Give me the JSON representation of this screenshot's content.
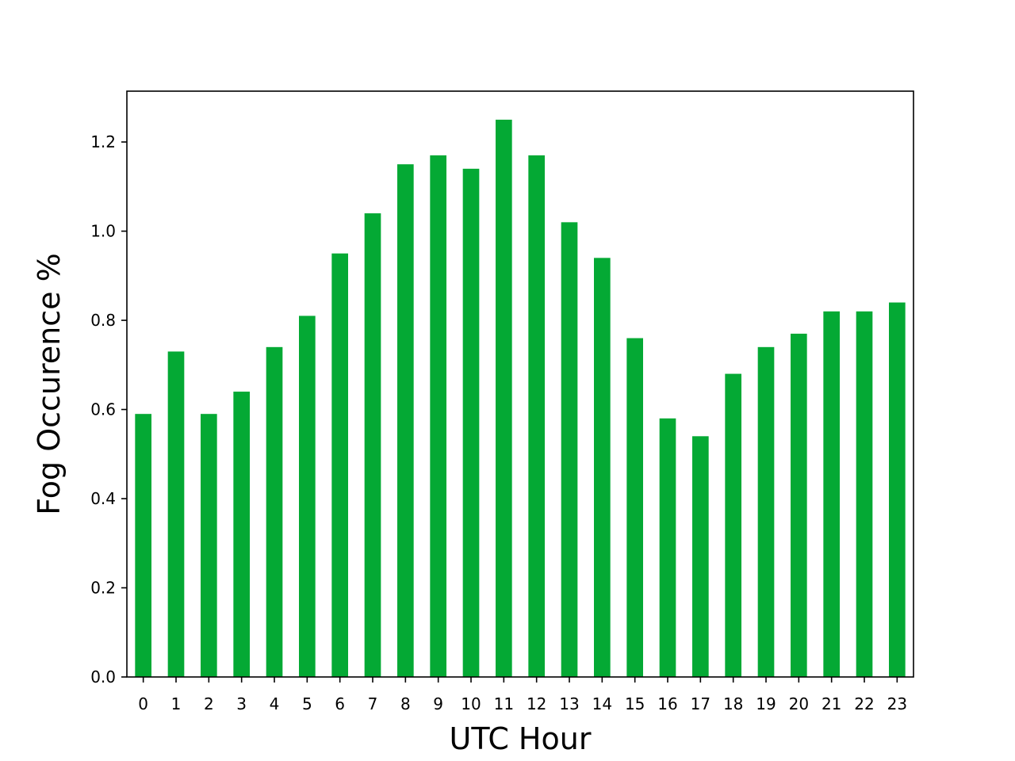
{
  "chart_data": {
    "type": "bar",
    "title": "",
    "xlabel": "UTC Hour",
    "ylabel": "Fog Occurence %",
    "categories": [
      "0",
      "1",
      "2",
      "3",
      "4",
      "5",
      "6",
      "7",
      "8",
      "9",
      "10",
      "11",
      "12",
      "13",
      "14",
      "15",
      "16",
      "17",
      "18",
      "19",
      "20",
      "21",
      "22",
      "23"
    ],
    "values": [
      0.59,
      0.73,
      0.59,
      0.64,
      0.74,
      0.81,
      0.95,
      1.04,
      1.15,
      1.17,
      1.14,
      1.25,
      1.17,
      1.02,
      0.94,
      0.76,
      0.58,
      0.54,
      0.68,
      0.74,
      0.77,
      0.82,
      0.82,
      0.84
    ],
    "ylim": [
      0,
      1.314
    ],
    "yticks": [
      0.0,
      0.2,
      0.4,
      0.6,
      0.8,
      1.0,
      1.2
    ],
    "ytick_labels": [
      "0.0",
      "0.2",
      "0.4",
      "0.6",
      "0.8",
      "1.0",
      "1.2"
    ],
    "bar_color": "#04a934",
    "grid": false,
    "legend": "none"
  }
}
